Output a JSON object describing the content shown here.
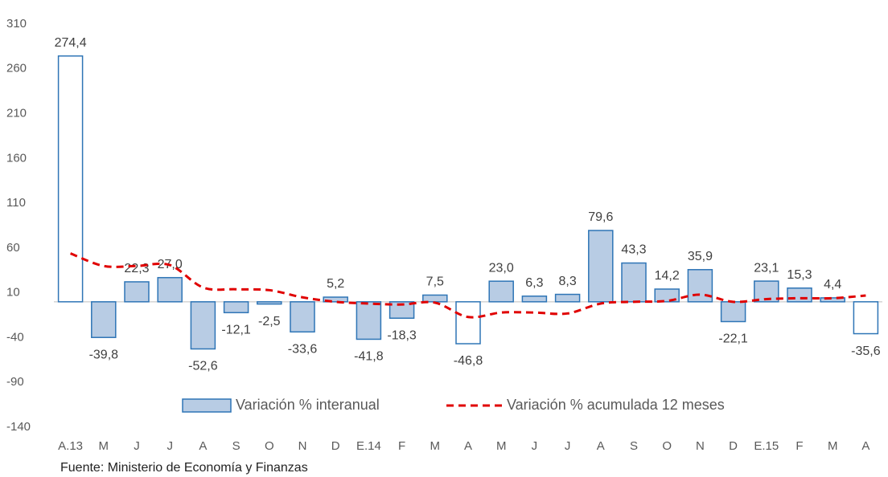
{
  "chart_data": {
    "type": "bar_line",
    "categories": [
      "A.13",
      "M",
      "J",
      "J",
      "A",
      "S",
      "O",
      "N",
      "D",
      "E.14",
      "F",
      "M",
      "A",
      "M",
      "J",
      "J",
      "A",
      "S",
      "O",
      "N",
      "D",
      "E.15",
      "F",
      "M",
      "A"
    ],
    "series": [
      {
        "name": "Variación % interanual",
        "type": "bar",
        "color": "#2e75b6",
        "colors": [
          "#ffffff",
          "#b8cce4",
          "#b8cce4",
          "#b8cce4",
          "#b8cce4",
          "#b8cce4",
          "#b8cce4",
          "#b8cce4",
          "#b8cce4",
          "#b8cce4",
          "#b8cce4",
          "#b8cce4",
          "#ffffff",
          "#b8cce4",
          "#b8cce4",
          "#b8cce4",
          "#b8cce4",
          "#b8cce4",
          "#b8cce4",
          "#b8cce4",
          "#b8cce4",
          "#b8cce4",
          "#b8cce4",
          "#b8cce4",
          "#ffffff"
        ],
        "values": [
          274.4,
          -39.8,
          22.3,
          27.0,
          -52.6,
          -12.1,
          -2.5,
          -33.6,
          5.2,
          -41.8,
          -18.3,
          7.5,
          -46.8,
          23.0,
          6.3,
          8.3,
          79.6,
          43.3,
          14.2,
          35.9,
          -22.1,
          23.1,
          15.3,
          4.4,
          -35.6
        ],
        "value_labels": [
          "274,4",
          "-39,8",
          "22,3",
          "27,0",
          "-52,6",
          "-12,1",
          "-2,5",
          "-33,6",
          "5,2",
          "-41,8",
          "-18,3",
          "7,5",
          "-46,8",
          "23,0",
          "6,3",
          "8,3",
          "79,6",
          "43,3",
          "14,2",
          "35,9",
          "-22,1",
          "23,1",
          "15,3",
          "4,4",
          "-35,6"
        ]
      },
      {
        "name": "Variación % acumulada 12 meses",
        "type": "line",
        "color": "#e00000",
        "values": [
          54,
          40,
          40,
          41,
          16,
          14,
          13,
          5,
          0,
          -2,
          -3,
          -1,
          -17,
          -12,
          -12,
          -13,
          -2,
          0,
          1,
          8,
          0,
          3,
          4,
          4,
          7
        ]
      }
    ],
    "ylim": [
      -140,
      310
    ],
    "yticks": [
      -140,
      -90,
      -40,
      10,
      60,
      110,
      160,
      210,
      260,
      310
    ],
    "footnote": "Fuente: Ministerio de Economía y Finanzas"
  }
}
